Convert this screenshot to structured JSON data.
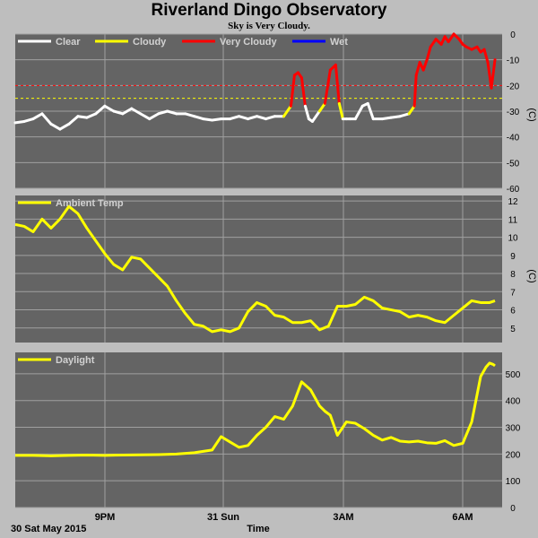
{
  "title": "Riverland Dingo Observatory",
  "subtitle": "Sky is Very Cloudy.",
  "date_label": "30 Sat May 2015",
  "xlabel": "Time",
  "x_ticks": [
    "9PM",
    "31 Sun",
    "3AM",
    "6AM"
  ],
  "colors": {
    "clear": "#ffffff",
    "cloudy": "#ffff00",
    "very_cloudy": "#ff0000",
    "wet": "#0000ff",
    "panel_bg": "#646464",
    "page_bg": "#bebebe",
    "grid": "#a0a0a0"
  },
  "chart_data": [
    {
      "type": "line",
      "ylabel": "(C)",
      "ylim": [
        -60,
        0
      ],
      "yticks": [
        0,
        -10,
        -20,
        -30,
        -40,
        -50,
        -60
      ],
      "legend": [
        "Clear",
        "Cloudy",
        "Very Cloudy",
        "Wet"
      ],
      "thresholds": [
        {
          "value": -20,
          "color": "#ff0000"
        },
        {
          "value": -25,
          "color": "#ffff00"
        }
      ],
      "x": [
        0,
        0.5,
        1,
        1.5,
        2,
        2.5,
        3,
        3.5,
        4,
        4.5,
        5,
        5.5,
        6,
        6.5,
        7,
        7.5,
        8,
        8.5,
        9,
        9.5,
        10,
        10.5,
        11,
        11.5,
        12,
        12.5,
        13,
        13.5,
        14,
        14.5,
        15,
        15.4,
        15.6,
        15.8,
        16,
        16.2,
        16.4,
        16.6,
        17,
        17.3,
        17.6,
        17.9,
        18.1,
        18.3,
        18.5,
        18.7,
        19,
        19.4,
        19.7,
        20,
        20.5,
        21,
        21.5,
        22,
        22.3,
        22.4,
        22.6,
        22.8,
        23,
        23.2,
        23.5,
        23.8,
        24,
        24.2,
        24.5,
        24.8,
        25,
        25.2,
        25.5,
        25.8,
        26,
        26.2,
        26.4,
        26.6,
        26.8
      ],
      "y": [
        -34.5,
        -34,
        -33,
        -31,
        -35,
        -37,
        -35,
        -32,
        -32.5,
        -31,
        -28,
        -30,
        -31,
        -29,
        -31,
        -33,
        -31,
        -30,
        -31,
        -31,
        -32,
        -33,
        -33.5,
        -33,
        -33,
        -32,
        -33,
        -32,
        -33,
        -32,
        -32,
        -28,
        -16,
        -15,
        -17,
        -28,
        -33,
        -34,
        -30,
        -27,
        -14,
        -12,
        -27,
        -33,
        -33,
        -33,
        -33,
        -28,
        -27,
        -33,
        -33,
        -32.5,
        -32,
        -31,
        -28,
        -16,
        -11,
        -14,
        -10,
        -5,
        -2,
        -4,
        -1,
        -3,
        0,
        -2,
        -4,
        -5,
        -6,
        -5,
        -7,
        -6,
        -11,
        -21,
        -10
      ],
      "state": [
        "clear",
        "clear",
        "clear",
        "clear",
        "clear",
        "clear",
        "clear",
        "clear",
        "clear",
        "clear",
        "clear",
        "clear",
        "clear",
        "clear",
        "clear",
        "clear",
        "clear",
        "clear",
        "clear",
        "clear",
        "clear",
        "clear",
        "clear",
        "clear",
        "clear",
        "clear",
        "clear",
        "clear",
        "clear",
        "clear",
        "clear",
        "cloudy",
        "very_cloudy",
        "very_cloudy",
        "very_cloudy",
        "very_cloudy",
        "clear",
        "clear",
        "clear",
        "cloudy",
        "very_cloudy",
        "very_cloudy",
        "very_cloudy",
        "cloudy",
        "clear",
        "clear",
        "clear",
        "clear",
        "clear",
        "clear",
        "clear",
        "clear",
        "clear",
        "clear",
        "cloudy",
        "very_cloudy",
        "very_cloudy",
        "very_cloudy",
        "very_cloudy",
        "very_cloudy",
        "very_cloudy",
        "very_cloudy",
        "very_cloudy",
        "very_cloudy",
        "very_cloudy",
        "very_cloudy",
        "very_cloudy",
        "very_cloudy",
        "very_cloudy",
        "very_cloudy",
        "very_cloudy",
        "very_cloudy",
        "very_cloudy",
        "very_cloudy",
        "very_cloudy"
      ]
    },
    {
      "type": "line",
      "ylabel": "(C)",
      "ylim": [
        4.2,
        12.3
      ],
      "yticks": [
        5,
        6,
        7,
        8,
        9,
        10,
        11,
        12
      ],
      "legend": [
        "Ambient Temp"
      ],
      "x": [
        0,
        0.5,
        1,
        1.5,
        2,
        2.5,
        3,
        3.5,
        4,
        4.5,
        5,
        5.5,
        6,
        6.5,
        7,
        7.5,
        8,
        8.5,
        9,
        9.5,
        10,
        10.5,
        11,
        11.5,
        12,
        12.5,
        13,
        13.5,
        14,
        14.5,
        15,
        15.5,
        16,
        16.5,
        17,
        17.5,
        18,
        18.5,
        19,
        19.5,
        20,
        20.5,
        21,
        21.5,
        22,
        22.5,
        23,
        23.5,
        24,
        24.5,
        25,
        25.5,
        26,
        26.5,
        26.8
      ],
      "y": [
        10.7,
        10.6,
        10.3,
        11.0,
        10.5,
        11.0,
        11.7,
        11.3,
        10.5,
        9.8,
        9.1,
        8.5,
        8.2,
        8.9,
        8.8,
        8.3,
        7.8,
        7.3,
        6.5,
        5.8,
        5.2,
        5.1,
        4.8,
        4.9,
        4.8,
        5.0,
        5.9,
        6.4,
        6.2,
        5.7,
        5.6,
        5.3,
        5.3,
        5.4,
        4.9,
        5.1,
        6.2,
        6.2,
        6.3,
        6.7,
        6.5,
        6.1,
        6.0,
        5.9,
        5.6,
        5.7,
        5.6,
        5.4,
        5.3,
        5.7,
        6.1,
        6.5,
        6.4,
        6.4,
        6.5
      ]
    },
    {
      "type": "line",
      "ylabel": "",
      "ylim": [
        0,
        580
      ],
      "yticks": [
        0,
        100,
        200,
        300,
        400,
        500
      ],
      "legend": [
        "Daylight"
      ],
      "x": [
        0,
        1,
        2,
        3,
        4,
        5,
        6,
        7,
        8,
        9,
        10,
        11,
        11.5,
        12,
        12.5,
        13,
        13.5,
        14,
        14.5,
        15,
        15.5,
        16,
        16.5,
        17,
        17.3,
        17.6,
        18,
        18.5,
        19,
        19.5,
        20,
        20.5,
        21,
        21.5,
        22,
        22.5,
        23,
        23.5,
        24,
        24.5,
        25,
        25.5,
        26,
        26.3,
        26.5,
        26.7,
        26.8
      ],
      "y": [
        195,
        195,
        193,
        195,
        196,
        195,
        196,
        197,
        198,
        200,
        205,
        215,
        265,
        245,
        225,
        232,
        270,
        300,
        340,
        330,
        380,
        470,
        440,
        380,
        360,
        345,
        270,
        320,
        315,
        295,
        270,
        252,
        262,
        248,
        245,
        248,
        242,
        240,
        250,
        232,
        240,
        320,
        490,
        525,
        540,
        535,
        530
      ]
    }
  ]
}
